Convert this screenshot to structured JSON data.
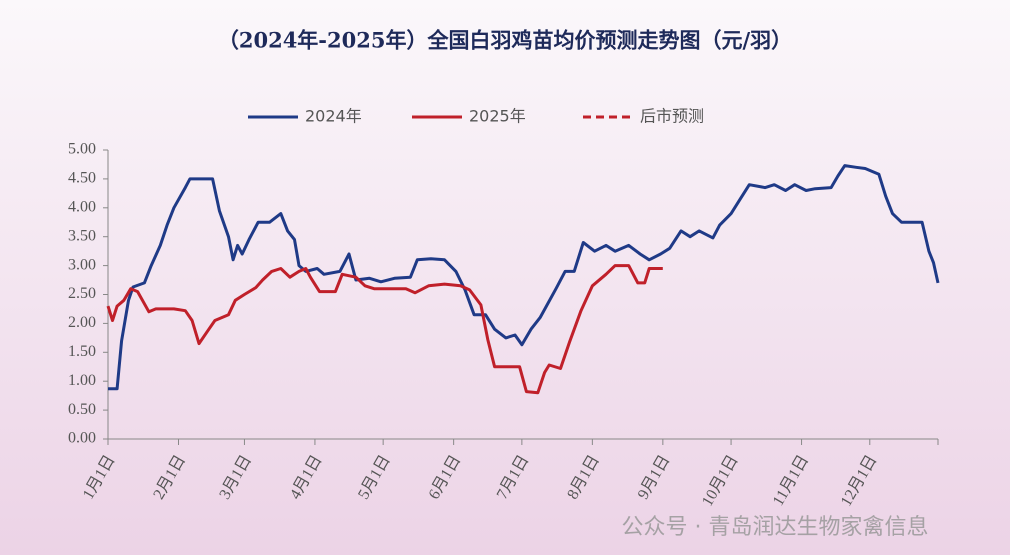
{
  "chart_data": {
    "type": "line",
    "title": "（2024年-2025年）全国白羽鸡苗均价预测走势图（元/羽）",
    "watermark": "公众号 · 青岛润达生物家禽信息",
    "xlim": [
      0,
      365
    ],
    "ylim": [
      0,
      5
    ],
    "xticks": [
      {
        "value": 0,
        "label": "1月1日"
      },
      {
        "value": 31,
        "label": "2月1日"
      },
      {
        "value": 60,
        "label": "3月1日"
      },
      {
        "value": 91,
        "label": "4月1日"
      },
      {
        "value": 121,
        "label": "5月1日"
      },
      {
        "value": 152,
        "label": "6月1日"
      },
      {
        "value": 182,
        "label": "7月1日"
      },
      {
        "value": 213,
        "label": "8月1日"
      },
      {
        "value": 244,
        "label": "9月1日"
      },
      {
        "value": 274,
        "label": "10月1日"
      },
      {
        "value": 305,
        "label": "11月1日"
      },
      {
        "value": 335,
        "label": "12月1日"
      },
      365
    ],
    "yticks": [
      {
        "value": 0,
        "label": "0.00"
      },
      {
        "value": 0.5,
        "label": "0.50"
      },
      {
        "value": 1,
        "label": "1.00"
      },
      {
        "value": 1.5,
        "label": "1.50"
      },
      {
        "value": 2,
        "label": "2.00"
      },
      {
        "value": 2.5,
        "label": "2.50"
      },
      {
        "value": 3,
        "label": "3.00"
      },
      {
        "value": 3.5,
        "label": "3.50"
      },
      {
        "value": 4,
        "label": "4.00"
      },
      {
        "value": 4.5,
        "label": "4.50"
      },
      {
        "value": 5,
        "label": "5.00"
      }
    ],
    "series": [
      {
        "name": "2024年",
        "color": "#1f3a87",
        "dashed": false,
        "x": [
          0,
          4,
          6,
          9,
          11,
          16,
          19,
          23,
          26,
          29,
          34,
          36,
          46,
          49,
          53,
          55,
          57,
          59,
          62,
          66,
          71,
          76,
          79,
          82,
          84,
          87,
          92,
          95,
          102,
          106,
          109,
          115,
          120,
          126,
          133,
          136,
          142,
          148,
          153,
          157,
          161,
          166,
          170,
          175,
          179,
          182,
          186,
          190,
          197,
          201,
          205,
          209,
          214,
          219,
          223,
          229,
          234,
          238,
          243,
          247,
          252,
          256,
          260,
          266,
          269,
          274,
          278,
          282,
          289,
          293,
          298,
          302,
          307,
          311,
          318,
          321,
          324,
          329,
          333,
          339,
          342,
          345,
          349,
          358,
          361,
          363,
          365
        ],
        "values": [
          0.87,
          0.87,
          1.7,
          2.4,
          2.63,
          2.7,
          3.0,
          3.35,
          3.7,
          4.0,
          4.35,
          4.5,
          4.5,
          3.95,
          3.5,
          3.1,
          3.35,
          3.2,
          3.45,
          3.75,
          3.75,
          3.9,
          3.6,
          3.45,
          3.0,
          2.9,
          2.95,
          2.85,
          2.9,
          3.2,
          2.75,
          2.78,
          2.72,
          2.78,
          2.8,
          3.1,
          3.12,
          3.1,
          2.9,
          2.58,
          2.15,
          2.15,
          1.9,
          1.75,
          1.8,
          1.63,
          1.9,
          2.1,
          2.6,
          2.9,
          2.9,
          3.4,
          3.25,
          3.35,
          3.25,
          3.35,
          3.2,
          3.1,
          3.2,
          3.3,
          3.6,
          3.5,
          3.6,
          3.48,
          3.7,
          3.9,
          4.15,
          4.4,
          4.35,
          4.4,
          4.3,
          4.4,
          4.3,
          4.33,
          4.35,
          4.55,
          4.73,
          4.7,
          4.68,
          4.58,
          4.2,
          3.9,
          3.75,
          3.75,
          3.25,
          3.05,
          2.7
        ]
      },
      {
        "name": "2025年",
        "color": "#c0202a",
        "dashed": false,
        "x": [
          0,
          2,
          4,
          7,
          10,
          13,
          18,
          21,
          29,
          34,
          37,
          40,
          44,
          47,
          53,
          56,
          60,
          65,
          68,
          72,
          76,
          80,
          84,
          87,
          89,
          93,
          100,
          103,
          109,
          113,
          117,
          124,
          131,
          135,
          141,
          148,
          155,
          159,
          164,
          167,
          170,
          181,
          184,
          189,
          192,
          194,
          199,
          203,
          208,
          213,
          219,
          223,
          229,
          233,
          236,
          238,
          244
        ],
        "values": [
          2.3,
          2.05,
          2.3,
          2.4,
          2.6,
          2.55,
          2.2,
          2.25,
          2.25,
          2.22,
          2.05,
          1.65,
          1.88,
          2.05,
          2.15,
          2.4,
          2.5,
          2.62,
          2.75,
          2.9,
          2.95,
          2.8,
          2.9,
          2.95,
          2.8,
          2.55,
          2.55,
          2.85,
          2.8,
          2.65,
          2.6,
          2.6,
          2.6,
          2.53,
          2.65,
          2.68,
          2.65,
          2.58,
          2.32,
          1.72,
          1.25,
          1.25,
          0.82,
          0.8,
          1.15,
          1.28,
          1.22,
          1.68,
          2.22,
          2.65,
          2.85,
          3.0,
          3.0,
          2.7,
          2.7,
          2.95,
          2.95
        ]
      },
      {
        "name": "后市预测",
        "color": "#c0202a",
        "dashed": true,
        "x": [],
        "values": []
      }
    ]
  }
}
